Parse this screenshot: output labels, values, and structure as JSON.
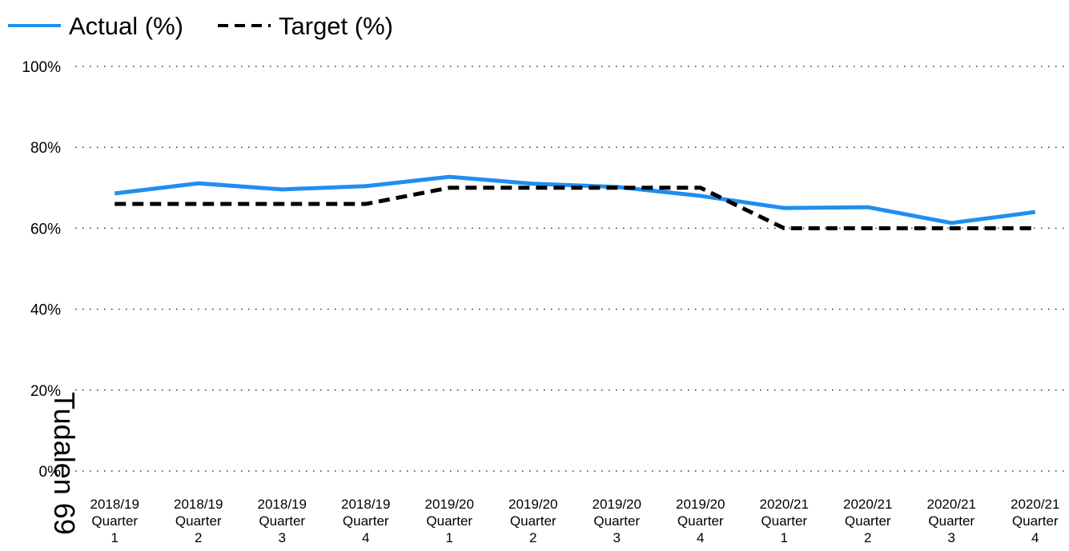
{
  "chart_data": {
    "type": "line",
    "categories": [
      "2018/19 Quarter 1",
      "2018/19 Quarter 2",
      "2018/19 Quarter 3",
      "2018/19 Quarter 4",
      "2019/20 Quarter 1",
      "2019/20 Quarter 2",
      "2019/20 Quarter 3",
      "2019/20 Quarter 4",
      "2020/21 Quarter 1",
      "2020/21 Quarter 2",
      "2020/21 Quarter 3",
      "2020/21 Quarter 4"
    ],
    "series": [
      {
        "name": "Actual (%)",
        "color": "#1e8ff0",
        "dash": false,
        "values": [
          68.6,
          71.1,
          69.6,
          70.4,
          72.7,
          71.0,
          70.2,
          68.0,
          65.0,
          65.2,
          61.3,
          64.0
        ]
      },
      {
        "name": "Target (%)",
        "color": "#000000",
        "dash": true,
        "values": [
          66,
          66,
          66,
          66,
          70,
          70,
          70,
          70,
          60,
          60,
          60,
          60
        ]
      }
    ],
    "ylim": [
      0,
      100
    ],
    "yticks": [
      {
        "value": 0,
        "label": "0%"
      },
      {
        "value": 20,
        "label": "20%"
      },
      {
        "value": 40,
        "label": "40%"
      },
      {
        "value": 60,
        "label": "60%"
      },
      {
        "value": 80,
        "label": "80%"
      },
      {
        "value": 100,
        "label": "100%"
      }
    ],
    "grid": true,
    "annotation": "Tudalen 69"
  }
}
